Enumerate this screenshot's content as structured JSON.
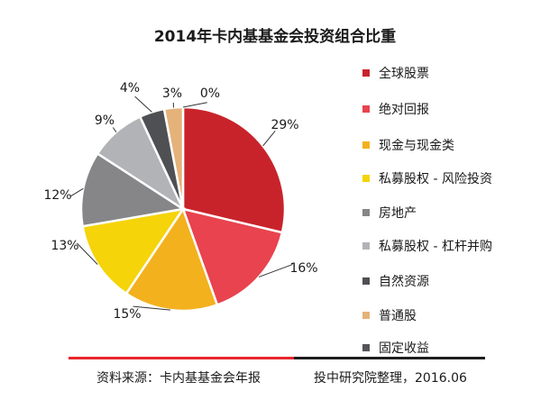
{
  "chart_data": {
    "type": "pie",
    "title": "2014年卡内基基金会投资组合比重",
    "categories": [
      "全球股票",
      "绝对回报",
      "现金与现金类",
      "私募股权 - 风险投资",
      "房地产",
      "私募股权 - 杠杆并购",
      "自然资源",
      "普通股",
      "固定收益"
    ],
    "values": [
      29,
      16,
      15,
      13,
      12,
      9,
      4,
      3,
      0
    ],
    "value_labels": [
      "29%",
      "16%",
      "15%",
      "13%",
      "12%",
      "9%",
      "4%",
      "3%",
      "0%"
    ],
    "colors": [
      "#c8232b",
      "#e8434e",
      "#f2b11d",
      "#f5d40a",
      "#868689",
      "#b1b3b6",
      "#4f5054",
      "#e5b27a",
      "#555559"
    ],
    "legend_position": "right"
  },
  "footer": {
    "source": "资料来源：卡内基基金会年报",
    "credit": "投中研究院整理，2016.06"
  }
}
